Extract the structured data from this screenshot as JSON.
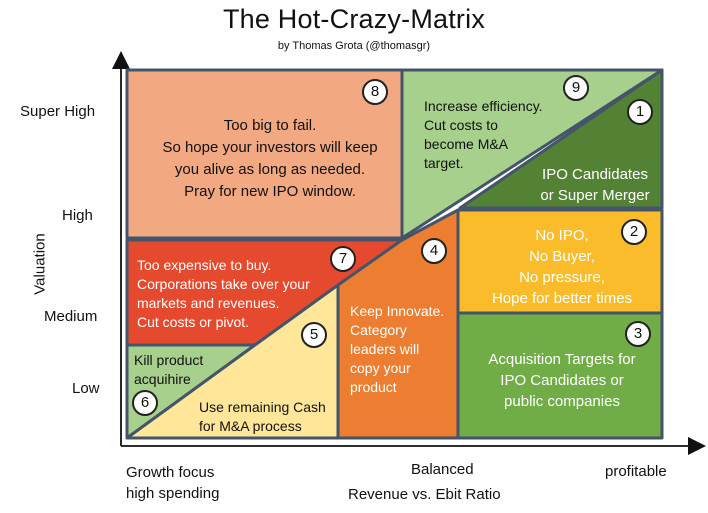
{
  "header": {
    "title": "The Hot-Crazy-Matrix",
    "subtitle": "by Thomas Grota (@thomasgr)"
  },
  "axes": {
    "y_title": "Valuation",
    "y_levels": [
      "Super High",
      "High",
      "Medium",
      "Low"
    ],
    "x_title": "Revenue vs. Ebit Ratio",
    "x_left": "Growth focus\nhigh spending",
    "x_mid": "Balanced",
    "x_right": "profitable"
  },
  "colors": {
    "salmon": "#F2A880",
    "light_green": "#A8D08D",
    "dark_green": "#548235",
    "yellow": "#FBBC2C",
    "green": "#70AD47",
    "red_orange": "#E64A2E",
    "orange": "#ED7D31",
    "pale_yellow": "#FFE699",
    "border": "#44546A"
  },
  "cells": [
    {
      "number": "1",
      "text": "IPO Candidates\nor Super Merger"
    },
    {
      "number": "2",
      "text": "No IPO,\nNo Buyer,\nNo pressure,\nHope for better times"
    },
    {
      "number": "3",
      "text": "Acquisition Targets for\nIPO Candidates or\npublic companies"
    },
    {
      "number": "4",
      "text": "Keep Innovate.\nCategory\nleaders will\ncopy your\nproduct"
    },
    {
      "number": "5",
      "text": "Use remaining Cash\nfor M&A process"
    },
    {
      "number": "6",
      "text": "Kill product\nacquihire"
    },
    {
      "number": "7",
      "text": "Too expensive to buy.\nCorporations take over your\nmarkets and revenues.\nCut costs or pivot."
    },
    {
      "number": "8",
      "text": "Too big to fail.\nSo hope your investors will keep\nyou alive as long as needed.\nPray for new IPO window."
    },
    {
      "number": "9",
      "text": "Increase efficiency.\nCut costs to\nbecome M&A\ntarget."
    }
  ]
}
